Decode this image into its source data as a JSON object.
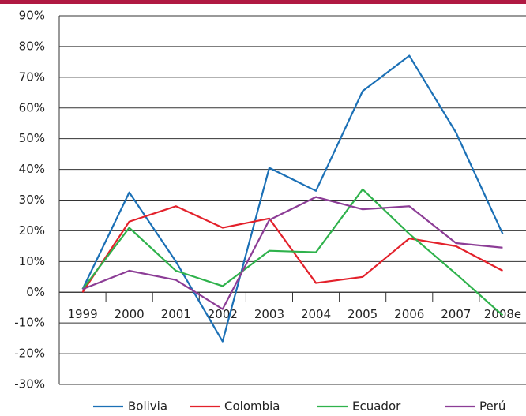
{
  "chart_data": {
    "type": "line",
    "categories": [
      "1999",
      "2000",
      "2001",
      "2002",
      "2003",
      "2004",
      "2005",
      "2006",
      "2007",
      "2008e"
    ],
    "series": [
      {
        "name": "Bolivia",
        "color": "#1b70b6",
        "values": [
          1,
          32.5,
          10,
          -16,
          40.5,
          33,
          65.5,
          77,
          52,
          19
        ]
      },
      {
        "name": "Colombia",
        "color": "#e3212b",
        "values": [
          0,
          23,
          28,
          21,
          24,
          3,
          5,
          17.5,
          15,
          7
        ]
      },
      {
        "name": "Ecuador",
        "color": "#2fb24c",
        "values": [
          1,
          21,
          7,
          2,
          13.5,
          13,
          33.5,
          19,
          6,
          -7.5
        ]
      },
      {
        "name": "Perú",
        "color": "#8c3d96",
        "values": [
          1,
          7,
          4,
          -5.5,
          23.5,
          31,
          27,
          28,
          16,
          14.5
        ]
      }
    ],
    "ylim": [
      -30,
      90
    ],
    "yticks": [
      {
        "value": -30,
        "label": "-30%"
      },
      {
        "value": -20,
        "label": "-20%"
      },
      {
        "value": -10,
        "label": "-10%"
      },
      {
        "value": 0,
        "label": "0%"
      },
      {
        "value": 10,
        "label": "10%"
      },
      {
        "value": 20,
        "label": "20%"
      },
      {
        "value": 30,
        "label": "30%"
      },
      {
        "value": 40,
        "label": "40%"
      },
      {
        "value": 50,
        "label": "50%"
      },
      {
        "value": 60,
        "label": "60%"
      },
      {
        "value": 70,
        "label": "70%"
      },
      {
        "value": 80,
        "label": "80%"
      },
      {
        "value": 90,
        "label": "90%"
      }
    ],
    "grid": true
  }
}
